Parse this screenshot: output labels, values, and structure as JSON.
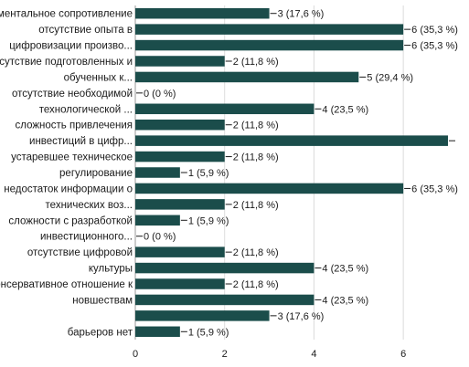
{
  "chart_data": {
    "type": "bar",
    "orientation": "horizontal",
    "bar_color": "#1b4d4b",
    "grid": true,
    "xlim": [
      0,
      7
    ],
    "x_ticks": [
      0,
      2,
      4,
      6
    ],
    "bars": [
      {
        "label": [
          "ментальное сопротивление"
        ],
        "value": 3,
        "value_label": "3 (17,6 %)"
      },
      {
        "label": [
          "отсутствие опыта в"
        ],
        "value": 6,
        "value_label": "6 (35,3 %)"
      },
      {
        "label": [
          "цифровизации произво..."
        ],
        "value": 6,
        "value_label": "6 (35,3 %)"
      },
      {
        "label": [
          "отсутствие подготовленных и"
        ],
        "value": 2,
        "value_label": "2 (11,8 %)"
      },
      {
        "label": [
          "обученных к..."
        ],
        "value": 5,
        "value_label": "5 (29,4 %)"
      },
      {
        "label": [
          "отсутствие необходимой"
        ],
        "value": 0,
        "value_label": "0 (0 %)"
      },
      {
        "label": [
          "технологической ..."
        ],
        "value": 4,
        "value_label": "4 (23,5 %)"
      },
      {
        "label": [
          "сложность привлечения"
        ],
        "value": 2,
        "value_label": "2 (11,8 %)"
      },
      {
        "label": [
          "инвестиций в цифр..."
        ],
        "value": 7,
        "value_label": ""
      },
      {
        "label": [
          "устаревшее техническое"
        ],
        "value": 2,
        "value_label": "2 (11,8 %)"
      },
      {
        "label": [
          "регулирование"
        ],
        "value": 1,
        "value_label": "1 (5,9 %)"
      },
      {
        "label": [
          "недостаток информации о"
        ],
        "value": 6,
        "value_label": "6 (35,3 %)"
      },
      {
        "label": [
          "технических воз..."
        ],
        "value": 2,
        "value_label": "2 (11,8 %)"
      },
      {
        "label": [
          "сложности с разработкой"
        ],
        "value": 1,
        "value_label": "1 (5,9 %)"
      },
      {
        "label": [
          "инвестиционного..."
        ],
        "value": 0,
        "value_label": "0 (0 %)"
      },
      {
        "label": [
          "отсутствие цифровой"
        ],
        "value": 2,
        "value_label": "2 (11,8 %)"
      },
      {
        "label": [
          "культуры"
        ],
        "value": 4,
        "value_label": "4 (23,5 %)"
      },
      {
        "label": [
          "консервативное отношение к"
        ],
        "value": 2,
        "value_label": "2 (11,8 %)"
      },
      {
        "label": [
          "новшествам"
        ],
        "value": 4,
        "value_label": "4 (23,5 %)"
      },
      {
        "label": [
          ""
        ],
        "value": 3,
        "value_label": "3 (17,6 %)"
      },
      {
        "label": [
          "барьеров нет"
        ],
        "value": 1,
        "value_label": "1 (5,9 %)"
      }
    ]
  }
}
